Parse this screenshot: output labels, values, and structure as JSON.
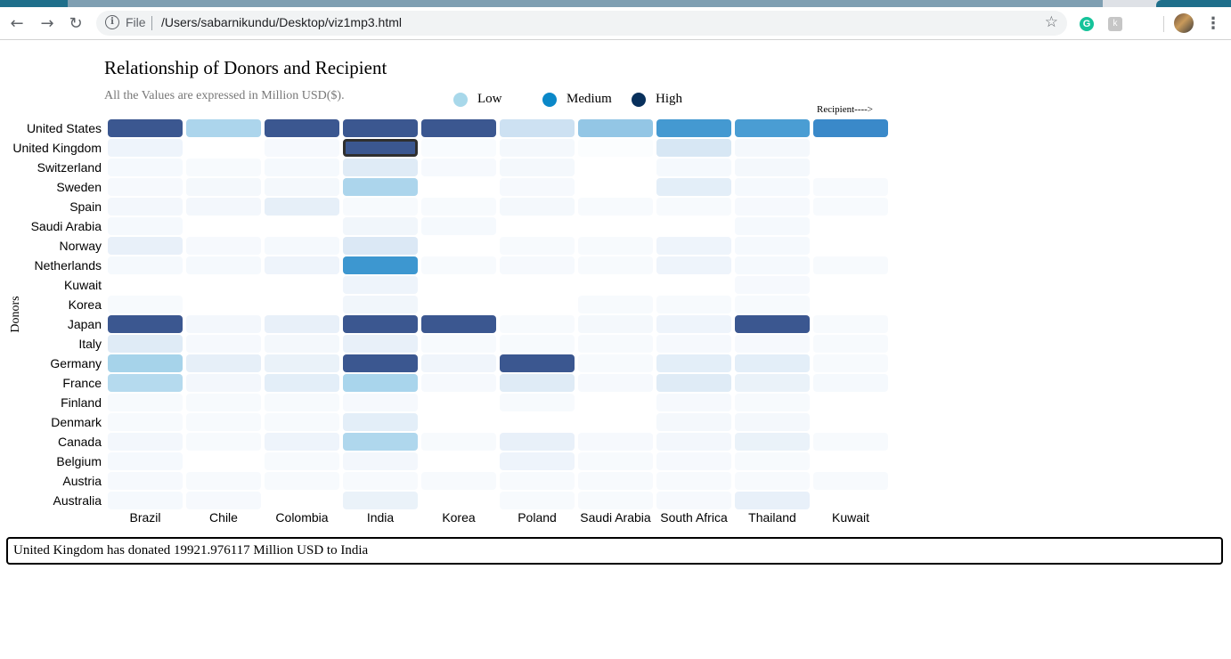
{
  "browser": {
    "scheme_label": "File",
    "url": "/Users/sabarnikundu/Desktop/viz1mp3.html",
    "back_icon": "←",
    "forward_icon": "→",
    "reload_icon": "↻",
    "info_icon": "i",
    "star_icon": "☆",
    "grammarly_label": "G",
    "extension_label": "k",
    "menu_icon": "⋮"
  },
  "page": {
    "title": "Relationship of Donors and Recipient",
    "subtitle": "All the Values are expressed in Million USD($).",
    "recipient_arrow": "Recipient---->",
    "donors_label": "Donors",
    "info_text": "United Kingdom has donated 19921.976117 Million USD to India"
  },
  "legend": [
    {
      "label": "Low",
      "color": "#a8d8ea"
    },
    {
      "label": "Medium",
      "color": "#0b88c8"
    },
    {
      "label": "High",
      "color": "#08305c"
    }
  ],
  "chart_data": {
    "type": "heatmap",
    "donors": [
      "United States",
      "United Kingdom",
      "Switzerland",
      "Sweden",
      "Spain",
      "Saudi Arabia",
      "Norway",
      "Netherlands",
      "Kuwait",
      "Korea",
      "Japan",
      "Italy",
      "Germany",
      "France",
      "Finland",
      "Denmark",
      "Canada",
      "Belgium",
      "Austria",
      "Australia"
    ],
    "recipients": [
      "Brazil",
      "Chile",
      "Colombia",
      "India",
      "Korea",
      "Poland",
      "Saudi Arabia",
      "South Africa",
      "Thailand",
      "Kuwait"
    ],
    "cell_colors": [
      [
        "#3b5790",
        "#acd5ec",
        "#3b5790",
        "#3b5790",
        "#3b5790",
        "#cde1f2",
        "#93c6e5",
        "#4499d1",
        "#4a9dd3",
        "#3a89c9"
      ],
      [
        "#eef4fb",
        "#ffffff",
        "#f6f9fd",
        "#3b5790",
        "#f8fbfe",
        "#f4f8fc",
        "#fbfdfe",
        "#d7e7f4",
        "#f4f8fc",
        "#ffffff"
      ],
      [
        "#f5f9fd",
        "#f7fafd",
        "#f5f9fd",
        "#dfebf6",
        "#f6f9fd",
        "#f4f8fc",
        "#ffffff",
        "#f5f9fd",
        "#f4f8fc",
        "#ffffff"
      ],
      [
        "#f6f9fd",
        "#f4f8fc",
        "#f4f8fc",
        "#acd5ec",
        "#ffffff",
        "#f6f9fd",
        "#ffffff",
        "#e3eef8",
        "#f5f9fd",
        "#f7fafd"
      ],
      [
        "#f3f7fc",
        "#f3f7fc",
        "#e6eff8",
        "#f7fafd",
        "#f7fafd",
        "#f4f8fc",
        "#f7fafd",
        "#f7fafd",
        "#f6f9fd",
        "#f7fafd"
      ],
      [
        "#f5f9fd",
        "#ffffff",
        "#ffffff",
        "#f1f6fb",
        "#f5f9fd",
        "#ffffff",
        "#ffffff",
        "#ffffff",
        "#f5f9fd",
        "#ffffff"
      ],
      [
        "#e8f0f9",
        "#f6f9fd",
        "#f5f9fd",
        "#dbe8f5",
        "#ffffff",
        "#f7fafd",
        "#f7fafd",
        "#eef4fb",
        "#f5f9fd",
        "#ffffff"
      ],
      [
        "#f5f9fd",
        "#f5f9fd",
        "#eef4fb",
        "#3d97d0",
        "#f7fafd",
        "#f6f9fd",
        "#f7fafd",
        "#eef4fb",
        "#f5f9fd",
        "#f7fafd"
      ],
      [
        "#ffffff",
        "#ffffff",
        "#ffffff",
        "#eef4fb",
        "#ffffff",
        "#ffffff",
        "#ffffff",
        "#ffffff",
        "#f6f9fd",
        "#ffffff"
      ],
      [
        "#f7fafd",
        "#ffffff",
        "#ffffff",
        "#f1f6fb",
        "#ffffff",
        "#ffffff",
        "#f7fafd",
        "#f7fafd",
        "#f7fafd",
        "#ffffff"
      ],
      [
        "#3b5790",
        "#f3f7fc",
        "#e8f0f9",
        "#3b5790",
        "#3b5790",
        "#f7fafd",
        "#f4f8fc",
        "#eef4fb",
        "#3b5790",
        "#f7fafd"
      ],
      [
        "#dfebf6",
        "#f6f9fd",
        "#f4f8fc",
        "#e8f0f9",
        "#f7fafd",
        "#f7fafd",
        "#f7fafd",
        "#f6f9fd",
        "#f6f9fd",
        "#f7fafd"
      ],
      [
        "#a6d3ea",
        "#e6eff8",
        "#eaf2f9",
        "#3b5790",
        "#f0f5fb",
        "#3b5790",
        "#f7fafd",
        "#e3eef8",
        "#e3eef8",
        "#f7fafd"
      ],
      [
        "#b5daee",
        "#f3f7fc",
        "#e3eef8",
        "#a9d5ec",
        "#f6f9fd",
        "#dfebf6",
        "#f6f9fd",
        "#dfebf6",
        "#eaf2f9",
        "#f5f9fd"
      ],
      [
        "#f7fafd",
        "#f7fafd",
        "#f7fafd",
        "#f6f9fd",
        "#ffffff",
        "#f7fafd",
        "#ffffff",
        "#f6f9fd",
        "#f7fafd",
        "#ffffff"
      ],
      [
        "#f7fafd",
        "#f7fafd",
        "#f7fafd",
        "#e3eef8",
        "#ffffff",
        "#ffffff",
        "#ffffff",
        "#f4f8fc",
        "#f4f8fc",
        "#ffffff"
      ],
      [
        "#f3f7fc",
        "#f7fafd",
        "#eef4fb",
        "#afd7ed",
        "#f7fafd",
        "#e8f0f9",
        "#f6f9fd",
        "#f3f7fc",
        "#eaf2f9",
        "#f7fafd"
      ],
      [
        "#f5f9fd",
        "#ffffff",
        "#f7fafd",
        "#f3f7fc",
        "#ffffff",
        "#eef4fb",
        "#f7fafd",
        "#f6f9fd",
        "#f7fafd",
        "#ffffff"
      ],
      [
        "#f6f9fd",
        "#f7fafd",
        "#f7fafd",
        "#f7fafd",
        "#f7fafd",
        "#f7fafd",
        "#f7fafd",
        "#f7fafd",
        "#f7fafd",
        "#f7fafd"
      ],
      [
        "#f5f9fd",
        "#f6f9fd",
        "#ffffff",
        "#eaf2f9",
        "#ffffff",
        "#f7fafd",
        "#f7fafd",
        "#f6f9fd",
        "#e8f0f9",
        "#ffffff"
      ]
    ],
    "selected": {
      "donor": "United Kingdom",
      "recipient": "India",
      "value": 19921.976117
    }
  }
}
